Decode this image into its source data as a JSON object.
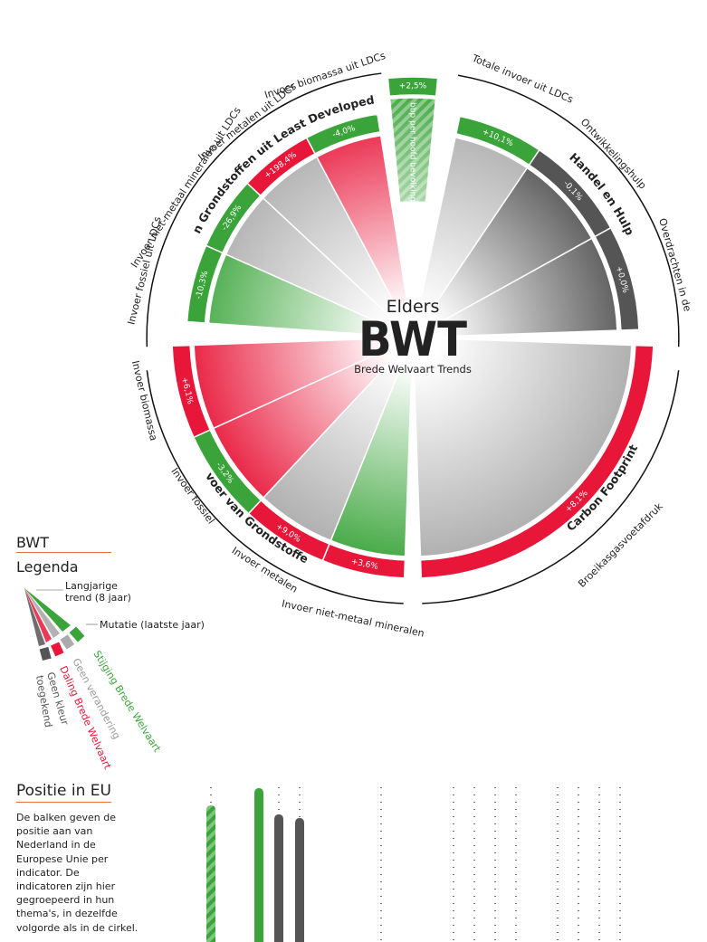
{
  "center": {
    "elders": "Elders",
    "bwt": "BWT",
    "subtitle": "Brede Welvaart Trends"
  },
  "top_wedge": {
    "value": "+2,5%",
    "label": "bbp per hoofd bevolking",
    "color": "#3aa43a"
  },
  "themes": [
    {
      "name": "Invoer van Grondstoffen uit Least Developed Countries",
      "color": "#e8173a"
    },
    {
      "name": "Handel en Hulp",
      "color": "#555555"
    },
    {
      "name": "Carbon Footprint",
      "color": "#e8173a"
    },
    {
      "name": "Invoer van Grondstoffen",
      "color": "#e8173a"
    }
  ],
  "indicators": [
    {
      "label": "Invoer fossiel uit LDCs",
      "value": "-10,3%",
      "trend": "green",
      "mutation": "green"
    },
    {
      "label": "Invoer niet-metaal mineralen uit LDCs",
      "value": "-26,9%",
      "trend": "gray",
      "mutation": "green"
    },
    {
      "label": "Invoer metalen uit LDCs",
      "value": "+198,4%",
      "trend": "gray",
      "mutation": "red"
    },
    {
      "label": "Invoer biomassa uit LDCs",
      "value": "-4,0%",
      "trend": "red",
      "mutation": "green"
    },
    {
      "label": "Totale invoer uit LDCs",
      "value": "+10,1%",
      "trend": "gray",
      "mutation": "green"
    },
    {
      "label": "Ontwikkelingshulp",
      "value": "-0,1%",
      "trend": "dark",
      "mutation": "dark"
    },
    {
      "label": "Overdrachten in de",
      "value": "+0,0%",
      "trend": "dark",
      "mutation": "dark"
    },
    {
      "label": "Broeikasgasvoetafdruk",
      "value": "+8,1%",
      "trend": "gray",
      "mutation": "red"
    },
    {
      "label": "Invoer niet-metaal mineralen",
      "value": "+3,6%",
      "trend": "green",
      "mutation": "red"
    },
    {
      "label": "Invoer metalen",
      "value": "+9,0%",
      "trend": "gray",
      "mutation": "red"
    },
    {
      "label": "Invoer fossiel",
      "value": "-3,2%",
      "trend": "red",
      "mutation": "green"
    },
    {
      "label": "Invoer biomassa",
      "value": "+6,1%",
      "trend": "red",
      "mutation": "red"
    }
  ],
  "colors": {
    "green": "#3aa43a",
    "red": "#e8173a",
    "gray": "#b3b3b3",
    "dark": "#555555"
  },
  "legend": {
    "title": "BWT",
    "subtitle": "Legenda",
    "trend_label": "Langjarige trend (8 jaar)",
    "mutation_label": "Mutatie (laatste jaar)",
    "items": [
      {
        "label": "Stijging Brede Welvaart",
        "color": "#3aa43a"
      },
      {
        "label": "Geen verandering",
        "color": "#999999"
      },
      {
        "label": "Daling Brede Welvaart",
        "color": "#e8173a"
      },
      {
        "label": "Geen kleur toegekend",
        "color": "#555555"
      }
    ]
  },
  "position": {
    "title": "Positie in EU",
    "description": "De balken geven de positie aan van Nederland in de Europese Unie per indicator. De indicatoren zijn hier gegroepeerd in hun thema's, in dezelfde volgorde als in de cirkel."
  }
}
